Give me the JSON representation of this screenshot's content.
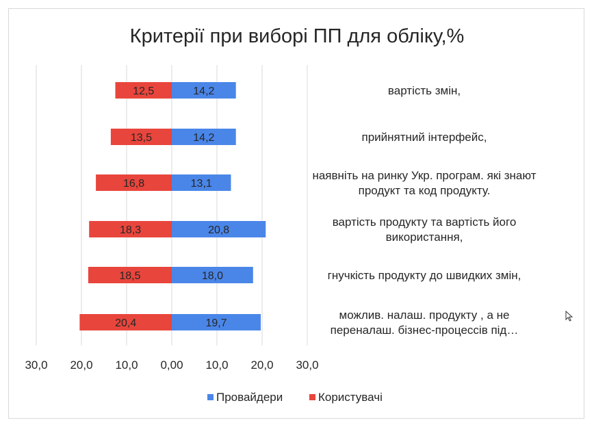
{
  "chart_data": {
    "type": "bar",
    "orientation": "horizontal-diverging",
    "title": "Критерії при виборі ПП для обліку,%",
    "categories": [
      [
        "вартість змін,"
      ],
      [
        "прийнятний інтерфейс,"
      ],
      [
        "наявніть на ринку Укр. програм. які знают",
        "продукт та код продукту."
      ],
      [
        "вартість продукту та вартість його",
        "використання,"
      ],
      [
        "гнучкість продукту до швидких змін,"
      ],
      [
        "можлив. налаш. продукту , а не",
        "переналаш. бізнес-процессів під…"
      ]
    ],
    "series": [
      {
        "name": "Провайдери",
        "color": "#4a86e8",
        "direction": "right",
        "values": [
          14.2,
          14.2,
          13.1,
          20.8,
          18.0,
          19.7
        ],
        "labels": [
          "14,2",
          "14,2",
          "13,1",
          "20,8",
          "18,0",
          "19,7"
        ]
      },
      {
        "name": "Користувачі",
        "color": "#e8453c",
        "direction": "left",
        "values": [
          12.5,
          13.5,
          16.8,
          18.3,
          18.5,
          20.4
        ],
        "labels": [
          "12,5",
          "13,5",
          "16,8",
          "18,3",
          "18,5",
          "20,4"
        ]
      }
    ],
    "xlim": [
      -30,
      30
    ],
    "xticks": [
      -30,
      -20,
      -10,
      0,
      10,
      20,
      30
    ],
    "xtick_labels": [
      "30,0",
      "20,0",
      "10,0",
      "0,00",
      "10,0",
      "20,0",
      "30,0"
    ],
    "grid": true,
    "legend_position": "bottom"
  }
}
